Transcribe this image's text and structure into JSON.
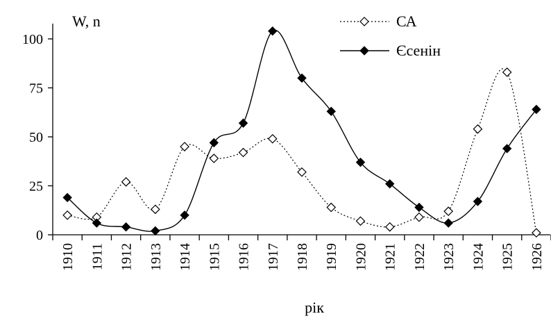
{
  "chart_data": {
    "type": "line",
    "title": "",
    "ylabel": "W, n",
    "xlabel": "рік",
    "categories": [
      "1910",
      "1911",
      "1912",
      "1913",
      "1914",
      "1915",
      "1916",
      "1917",
      "1918",
      "1919",
      "1920",
      "1921",
      "1922",
      "1923",
      "1924",
      "1925",
      "1926"
    ],
    "ylim": [
      0,
      100
    ],
    "yticks": [
      "0",
      "25",
      "50",
      "75",
      "100"
    ],
    "grid": false,
    "legend_position": "top-right",
    "series": [
      {
        "name": "СА",
        "style": "dotted",
        "marker": "open-diamond",
        "values": [
          10,
          9,
          27,
          13,
          45,
          39,
          42,
          49,
          32,
          14,
          7,
          4,
          9,
          12,
          54,
          83,
          1
        ]
      },
      {
        "name": "Єсенін",
        "style": "solid",
        "marker": "filled-diamond",
        "values": [
          19,
          6,
          4,
          2,
          10,
          47,
          57,
          104,
          80,
          63,
          37,
          26,
          14,
          6,
          17,
          44,
          64
        ]
      }
    ],
    "colors": {
      "line": "#000000",
      "background": "#ffffff"
    }
  }
}
